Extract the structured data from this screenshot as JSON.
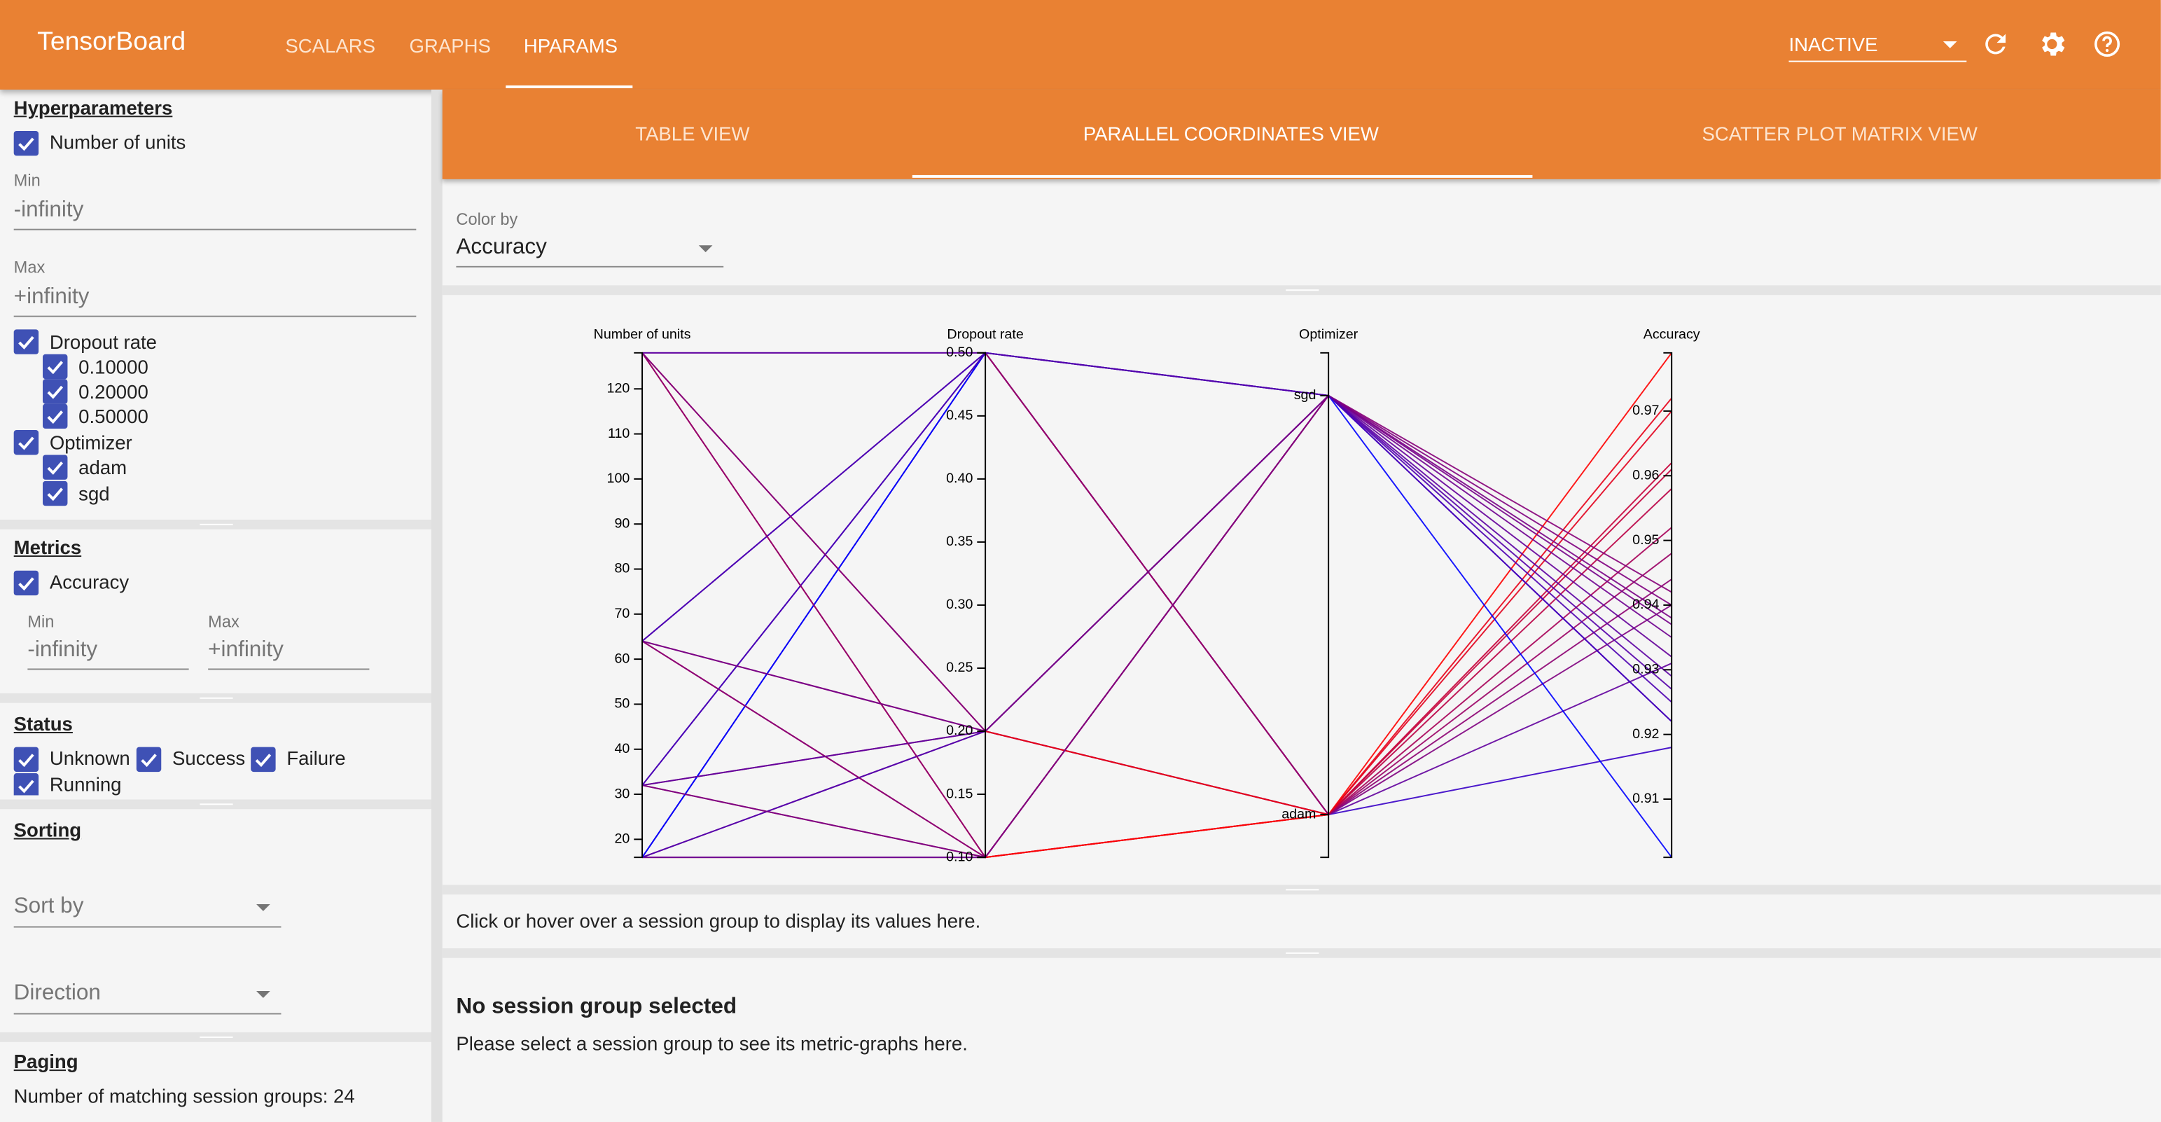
{
  "header": {
    "title": "TensorBoard",
    "tabs": [
      "SCALARS",
      "GRAPHS",
      "HPARAMS"
    ],
    "run_select": "INACTIVE"
  },
  "sidebar": {
    "hyperparameters": {
      "title": "Hyperparameters",
      "units": {
        "label": "Number of units",
        "min_label": "Min",
        "min": "-infinity",
        "max_label": "Max",
        "max": "+infinity"
      },
      "dropout": {
        "label": "Dropout rate",
        "values": [
          "0.10000",
          "0.20000",
          "0.50000"
        ]
      },
      "optimizer": {
        "label": "Optimizer",
        "values": [
          "adam",
          "sgd"
        ]
      }
    },
    "metrics": {
      "title": "Metrics",
      "accuracy": {
        "label": "Accuracy",
        "min_label": "Min",
        "min": "-infinity",
        "max_label": "Max",
        "max": "+infinity"
      }
    },
    "status": {
      "title": "Status",
      "options": [
        "Unknown",
        "Success",
        "Failure",
        "Running"
      ]
    },
    "sorting": {
      "title": "Sorting",
      "sort_by": "Sort by",
      "direction": "Direction"
    },
    "paging": {
      "title": "Paging",
      "matching": "Number of matching session groups: 24"
    }
  },
  "views": [
    "TABLE VIEW",
    "PARALLEL COORDINATES VIEW",
    "SCATTER PLOT MATRIX VIEW"
  ],
  "color_by": {
    "label": "Color by",
    "value": "Accuracy"
  },
  "chart_data": {
    "type": "parallel_coordinates",
    "color_scale": [
      "#0000ff",
      "#ff0000"
    ],
    "color_axis": 3,
    "axes": [
      {
        "label": "Number of units",
        "ylim": [
          16,
          128
        ],
        "yticks": [
          20,
          30,
          40,
          50,
          60,
          70,
          80,
          90,
          100,
          110,
          120
        ]
      },
      {
        "label": "Dropout rate",
        "ylim": [
          0.1,
          0.5
        ],
        "yticks": [
          {
            "value": 0.1,
            "label": "0.10"
          },
          0.15,
          {
            "value": 0.2,
            "label": "0.20"
          },
          0.25,
          {
            "value": 0.3,
            "label": "0.30"
          },
          0.35,
          {
            "value": 0.4,
            "label": "0.40"
          },
          0.45,
          {
            "value": 0.5,
            "label": "0.50"
          }
        ]
      },
      {
        "label": "Optimizer",
        "categories": [
          "adam",
          "sgd"
        ]
      },
      {
        "label": "Accuracy",
        "ylim": [
          0.901,
          0.979
        ],
        "yticks": [
          0.91,
          0.92,
          0.93,
          0.94,
          0.95,
          0.96,
          0.97
        ]
      }
    ],
    "sessions": [
      [
        16,
        0.1,
        "adam",
        0.958
      ],
      [
        16,
        0.2,
        "adam",
        0.944
      ],
      [
        16,
        0.5,
        "adam",
        0.918
      ],
      [
        32,
        0.1,
        "adam",
        0.962
      ],
      [
        32,
        0.2,
        "adam",
        0.952
      ],
      [
        32,
        0.5,
        "adam",
        0.931
      ],
      [
        64,
        0.1,
        "adam",
        0.97
      ],
      [
        64,
        0.2,
        "adam",
        0.961
      ],
      [
        64,
        0.5,
        "adam",
        0.94
      ],
      [
        128,
        0.1,
        "adam",
        0.979
      ],
      [
        128,
        0.2,
        "adam",
        0.972
      ],
      [
        128,
        0.5,
        "adam",
        0.948
      ],
      [
        16,
        0.1,
        "sgd",
        0.932
      ],
      [
        16,
        0.2,
        "sgd",
        0.925
      ],
      [
        16,
        0.5,
        "sgd",
        0.901
      ],
      [
        32,
        0.1,
        "sgd",
        0.937
      ],
      [
        32,
        0.2,
        "sgd",
        0.929
      ],
      [
        32,
        0.5,
        "sgd",
        0.922
      ],
      [
        64,
        0.1,
        "sgd",
        0.94
      ],
      [
        64,
        0.2,
        "sgd",
        0.935
      ],
      [
        64,
        0.5,
        "sgd",
        0.922
      ],
      [
        128,
        0.1,
        "sgd",
        0.942
      ],
      [
        128,
        0.2,
        "sgd",
        0.938
      ],
      [
        128,
        0.5,
        "sgd",
        0.927
      ]
    ]
  },
  "hover_hint": "Click or hover over a session group to display its values here.",
  "selection": {
    "title": "No session group selected",
    "message": "Please select a session group to see its metric-graphs here."
  }
}
